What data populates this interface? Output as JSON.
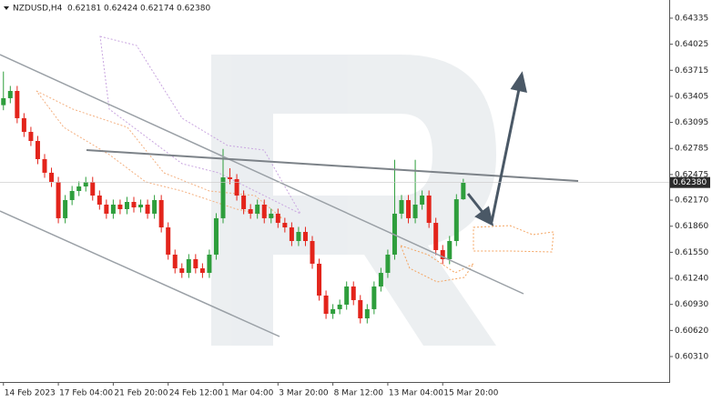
{
  "header": {
    "symbol": "NZDUSD,H4",
    "ohlc_labels": [
      "0.62181",
      "0.62424",
      "0.62174",
      "0.62380"
    ]
  },
  "chart_data": {
    "type": "candlestick",
    "open": [
      0.633,
      0.63383,
      0.63469,
      0.63145,
      0.62982,
      0.62874,
      0.62658,
      0.62496,
      0.62387,
      0.61955,
      0.62171,
      0.62279,
      0.62333,
      0.62387,
      0.62225,
      0.62117,
      0.62009,
      0.62117,
      0.62063,
      0.62149,
      0.62084,
      0.62117,
      0.62009,
      0.62171,
      0.61846,
      0.61522,
      0.61359,
      0.61305,
      0.61468,
      0.61359,
      0.61305,
      0.61522,
      0.61955,
      0.62441,
      0.6242,
      0.62225,
      0.62063,
      0.62009,
      0.62117,
      0.61955,
      0.62009,
      0.619,
      0.61846,
      0.61684,
      0.61792,
      0.61684,
      0.61414,
      0.61035,
      0.60818,
      0.60873,
      0.60927,
      0.61143,
      0.60981,
      0.60764,
      0.60873,
      0.61143,
      0.61305,
      0.61522,
      0.62009,
      0.62171,
      0.61955,
      0.62117,
      0.62225,
      0.619,
      0.61576,
      0.61468,
      0.61684,
      0.62181
    ],
    "high": [
      0.637,
      0.63529,
      0.63529,
      0.63205,
      0.63042,
      0.62934,
      0.62718,
      0.62556,
      0.62447,
      0.62231,
      0.62339,
      0.62393,
      0.62447,
      0.62447,
      0.62285,
      0.62177,
      0.62177,
      0.62177,
      0.62209,
      0.62209,
      0.62177,
      0.62177,
      0.62231,
      0.62231,
      0.61906,
      0.61582,
      0.61419,
      0.61528,
      0.61528,
      0.61419,
      0.61582,
      0.62015,
      0.6278,
      0.6255,
      0.6248,
      0.62285,
      0.62123,
      0.62177,
      0.62177,
      0.62069,
      0.62069,
      0.6196,
      0.61906,
      0.61852,
      0.61852,
      0.61744,
      0.61474,
      0.61095,
      0.60933,
      0.60987,
      0.61203,
      0.61203,
      0.61041,
      0.60933,
      0.61203,
      0.61365,
      0.61582,
      0.6265,
      0.62231,
      0.62231,
      0.6265,
      0.62285,
      0.62285,
      0.6196,
      0.61636,
      0.61744,
      0.62241,
      0.62424
    ],
    "low": [
      0.6324,
      0.63323,
      0.63085,
      0.62922,
      0.62814,
      0.62598,
      0.62436,
      0.62327,
      0.61895,
      0.61895,
      0.62111,
      0.62219,
      0.62273,
      0.62165,
      0.62057,
      0.61949,
      0.61949,
      0.62003,
      0.62003,
      0.62024,
      0.62024,
      0.61949,
      0.61949,
      0.61786,
      0.61462,
      0.61299,
      0.61245,
      0.61245,
      0.61299,
      0.61245,
      0.61245,
      0.61462,
      0.61895,
      0.6236,
      0.62165,
      0.62003,
      0.61949,
      0.61949,
      0.61895,
      0.61895,
      0.6184,
      0.61786,
      0.61624,
      0.61624,
      0.61624,
      0.61354,
      0.60975,
      0.60758,
      0.60758,
      0.60813,
      0.60867,
      0.60921,
      0.60704,
      0.60704,
      0.60813,
      0.61083,
      0.61245,
      0.61462,
      0.61949,
      0.61895,
      0.61895,
      0.62057,
      0.6184,
      0.61516,
      0.61408,
      0.61408,
      0.61624,
      0.62174
    ],
    "close": [
      0.63383,
      0.63469,
      0.63145,
      0.62982,
      0.62874,
      0.62658,
      0.62496,
      0.62387,
      0.61955,
      0.62171,
      0.62279,
      0.62333,
      0.62387,
      0.62225,
      0.62117,
      0.62009,
      0.62117,
      0.62063,
      0.62149,
      0.62084,
      0.62117,
      0.62009,
      0.62171,
      0.61846,
      0.61522,
      0.61359,
      0.61305,
      0.61468,
      0.61359,
      0.61305,
      0.61522,
      0.61955,
      0.62441,
      0.6242,
      0.62225,
      0.62063,
      0.62009,
      0.62117,
      0.61955,
      0.62009,
      0.619,
      0.61846,
      0.61684,
      0.61792,
      0.61684,
      0.61414,
      0.61035,
      0.60818,
      0.60873,
      0.60927,
      0.61143,
      0.60981,
      0.60764,
      0.60873,
      0.61143,
      0.61305,
      0.61522,
      0.62009,
      0.62171,
      0.61955,
      0.62117,
      0.62225,
      0.619,
      0.61576,
      0.61468,
      0.61684,
      0.62181,
      0.6238
    ],
    "up_color": "#2e9e3c",
    "down_color": "#e3241b",
    "last_price_label": "0.62380",
    "xlim": [
      -0.5,
      97
    ],
    "xticks": [
      {
        "value": 0,
        "label": "14 Feb 2023"
      },
      {
        "value": 8,
        "label": "17 Feb 04:00"
      },
      {
        "value": 16,
        "label": "21 Feb 20:00"
      },
      {
        "value": 24,
        "label": "24 Feb 12:00"
      },
      {
        "value": 32,
        "label": "1 Mar 04:00"
      },
      {
        "value": 40,
        "label": "3 Mar 20:00"
      },
      {
        "value": 48,
        "label": "8 Mar 12:00"
      },
      {
        "value": 56,
        "label": "13 Mar 04:00"
      },
      {
        "value": 64,
        "label": "15 Mar 20:00"
      }
    ],
    "ylim": [
      0.60007,
      0.64551
    ],
    "yticks": [
      0.64335,
      {
        "value": 0.64025,
        "label": "0.64025"
      },
      0.63715,
      0.63405,
      0.63095,
      0.62785,
      0.62475,
      {
        "value": 0.6217,
        "label": "0.62170"
      },
      {
        "value": 0.6186,
        "label": "0.61860"
      },
      {
        "value": 0.6155,
        "label": "0.61550"
      },
      {
        "value": 0.6124,
        "label": "0.61240"
      },
      {
        "value": 0.6093,
        "label": "0.60930"
      },
      {
        "value": 0.6062,
        "label": "0.60620"
      },
      {
        "value": 0.6031,
        "label": "0.60310"
      }
    ]
  }
}
